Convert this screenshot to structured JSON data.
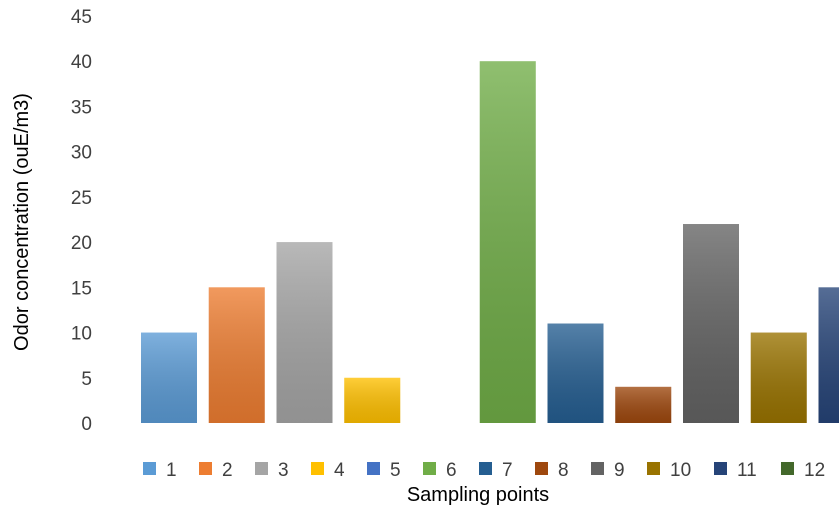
{
  "chart_data": {
    "type": "bar",
    "xlabel": "Sampling points",
    "ylabel": "Odor concentration (ouE/m3)",
    "ylim": [
      0,
      45
    ],
    "yticks": [
      0,
      5,
      10,
      15,
      20,
      25,
      30,
      35,
      40,
      45
    ],
    "grid": false,
    "legend_position": "bottom",
    "series": [
      {
        "name": "1",
        "value": 10,
        "color": "#5b9bd5"
      },
      {
        "name": "2",
        "value": 15,
        "color": "#ed7d31"
      },
      {
        "name": "3",
        "value": 20,
        "color": "#a5a5a5"
      },
      {
        "name": "4",
        "value": 5,
        "color": "#ffc000"
      },
      {
        "name": "5",
        "value": 0,
        "color": "#4472c4"
      },
      {
        "name": "6",
        "value": 40,
        "color": "#70ad47"
      },
      {
        "name": "7",
        "value": 11,
        "color": "#255e91"
      },
      {
        "name": "8",
        "value": 4,
        "color": "#9e480e"
      },
      {
        "name": "9",
        "value": 22,
        "color": "#636363"
      },
      {
        "name": "10",
        "value": 10,
        "color": "#997300"
      },
      {
        "name": "11",
        "value": 15,
        "color": "#264478"
      },
      {
        "name": "12",
        "value": 0,
        "color": "#43682b"
      }
    ]
  }
}
